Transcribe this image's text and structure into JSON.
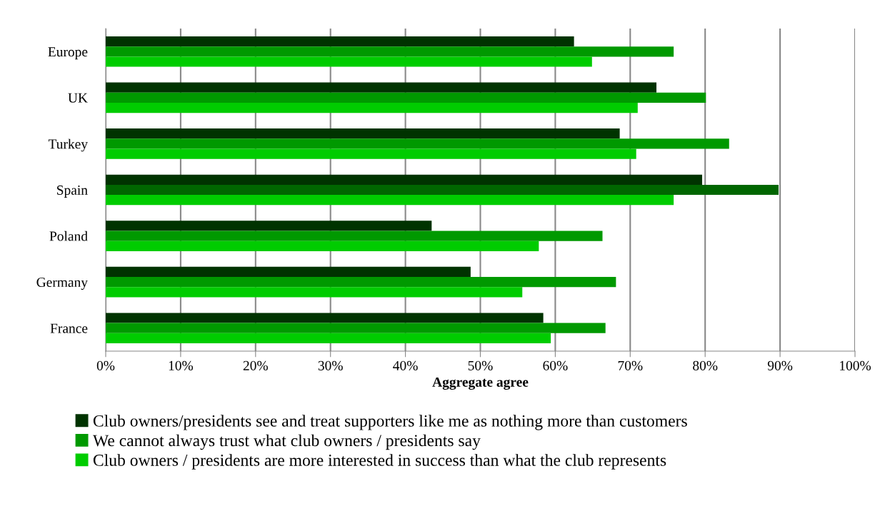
{
  "chart_data": {
    "type": "bar",
    "orientation": "horizontal",
    "xlabel": "Aggregate agree",
    "categories": [
      "Europe",
      "UK",
      "Turkey",
      "Spain",
      "Poland",
      "Germany",
      "France"
    ],
    "series": [
      {
        "name": "Club owners/presidents see and treat supporters like me as nothing more than customers",
        "color": "#003300",
        "values": [
          62.5,
          73.5,
          68.6,
          79.6,
          43.5,
          48.7,
          58.4
        ]
      },
      {
        "name": "We cannot always trust what club owners / presidents say",
        "color": "#009900",
        "colors": [
          "#009900",
          "#009900",
          "#009900",
          "#006600",
          "#009900",
          "#009900",
          "#009900"
        ],
        "values": [
          75.8,
          80.1,
          83.2,
          89.8,
          66.3,
          68.1,
          66.7
        ]
      },
      {
        "name": "Club owners / presidents are more interested in success than what the club represents",
        "color": "#00cc00",
        "values": [
          64.9,
          71.0,
          70.8,
          75.8,
          57.8,
          55.6,
          59.4
        ]
      }
    ],
    "xlim": [
      0,
      100
    ],
    "xticks": [
      {
        "value": 0,
        "label": "0%"
      },
      {
        "value": 10,
        "label": "10%"
      },
      {
        "value": 20,
        "label": "20%"
      },
      {
        "value": 30,
        "label": "30%"
      },
      {
        "value": 40,
        "label": "40%"
      },
      {
        "value": 50,
        "label": "50%"
      },
      {
        "value": 60,
        "label": "60%"
      },
      {
        "value": 70,
        "label": "70%"
      },
      {
        "value": 80,
        "label": "80%"
      },
      {
        "value": 90,
        "label": "90%"
      },
      {
        "value": 100,
        "label": "100%"
      }
    ],
    "grid": "x",
    "legend": "bottom"
  }
}
